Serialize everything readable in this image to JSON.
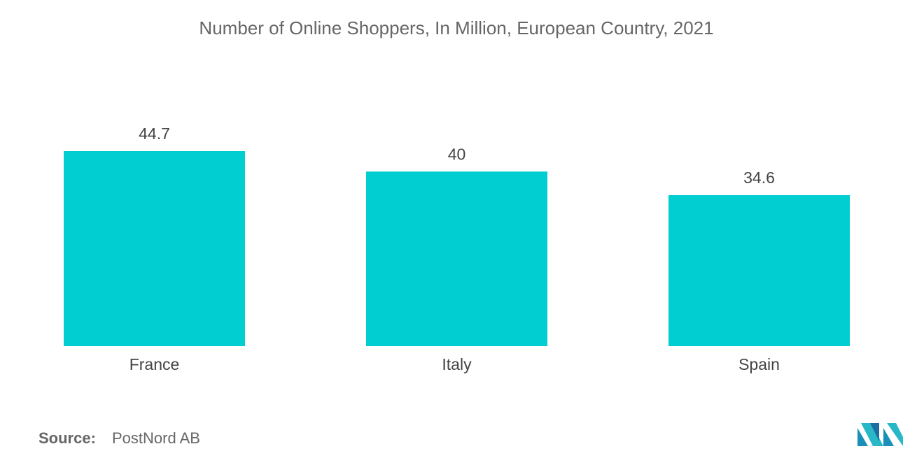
{
  "chart_data": {
    "type": "bar",
    "title": "Number of Online Shoppers, In Million, European Country, 2021",
    "categories": [
      "France",
      "Italy",
      "Spain"
    ],
    "values": [
      44.7,
      40,
      34.6
    ],
    "color": "#00ced1",
    "source_label": "Source:",
    "source": "PostNord AB"
  }
}
